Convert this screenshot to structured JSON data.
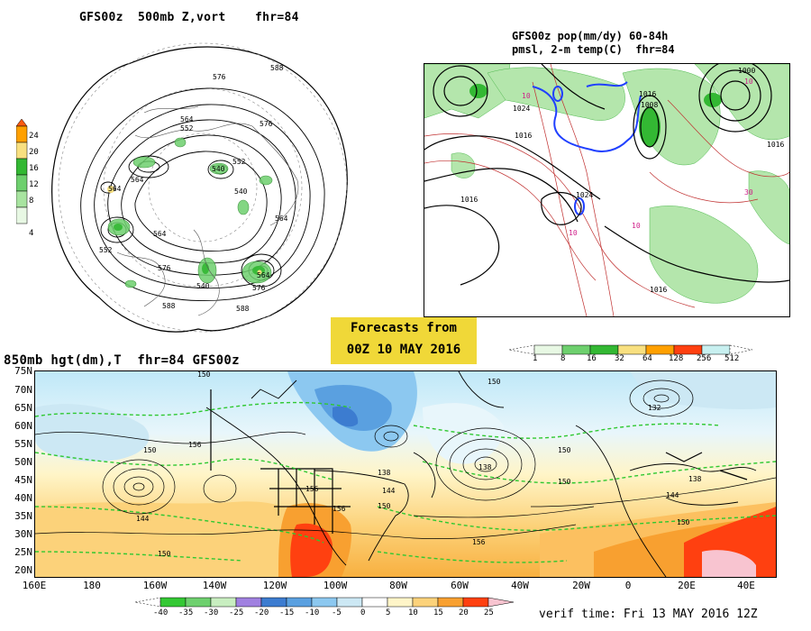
{
  "polar_title": "GFS00z  500mb Z,vort    fhr=84",
  "tr_title_1": "GFS00z pop(mm/dy) 60-84h",
  "tr_title_2": "pmsl, 2-m temp(C)  fhr=84",
  "bm_title": "850mb hgt(dm),T  fhr=84 GFS00z",
  "banner_1": "Forecasts from",
  "banner_2": "00Z 10 MAY 2016",
  "verif": "verif time: Fri 13 MAY 2016 12Z",
  "polar_legend": [
    "24",
    "20",
    "16",
    "12",
    "8",
    "4"
  ],
  "polar_labels": [
    "576",
    "588",
    "564",
    "552",
    "540",
    "564",
    "552",
    "564",
    "576",
    "540",
    "552",
    "564",
    "576",
    "564",
    "540",
    "564",
    "576",
    "588",
    "588"
  ],
  "precip_legend": [
    "1",
    "8",
    "16",
    "32",
    "64",
    "128",
    "256",
    "512"
  ],
  "temp_legend": [
    "-40",
    "-35",
    "-30",
    "-25",
    "-20",
    "-15",
    "-10",
    "-5",
    "0",
    "5",
    "10",
    "15",
    "20",
    "25"
  ],
  "lat_labels": [
    "75N",
    "70N",
    "65N",
    "60N",
    "55N",
    "50N",
    "45N",
    "40N",
    "35N",
    "30N",
    "25N",
    "20N"
  ],
  "lon_labels": [
    "160E",
    "180",
    "160W",
    "140W",
    "120W",
    "100W",
    "80W",
    "60W",
    "40W",
    "20W",
    "0",
    "20E",
    "40E"
  ],
  "bm_hgt_labels": [
    "150",
    "156",
    "144",
    "150",
    "156",
    "150",
    "138",
    "144",
    "150",
    "156",
    "138",
    "150",
    "156",
    "132",
    "150",
    "138",
    "144",
    "150",
    "150"
  ],
  "tr_labels": [
    "1024",
    "1016",
    "1024",
    "1016",
    "1008",
    "1000",
    "1016",
    "1016",
    "1016",
    "10",
    "10",
    "10",
    "10",
    "30"
  ],
  "colors": {
    "banner": "#f0d838",
    "green": "#2ec830",
    "contour": "#000000",
    "red_iso": "#c03030",
    "blue_iso": "#2040ff"
  }
}
